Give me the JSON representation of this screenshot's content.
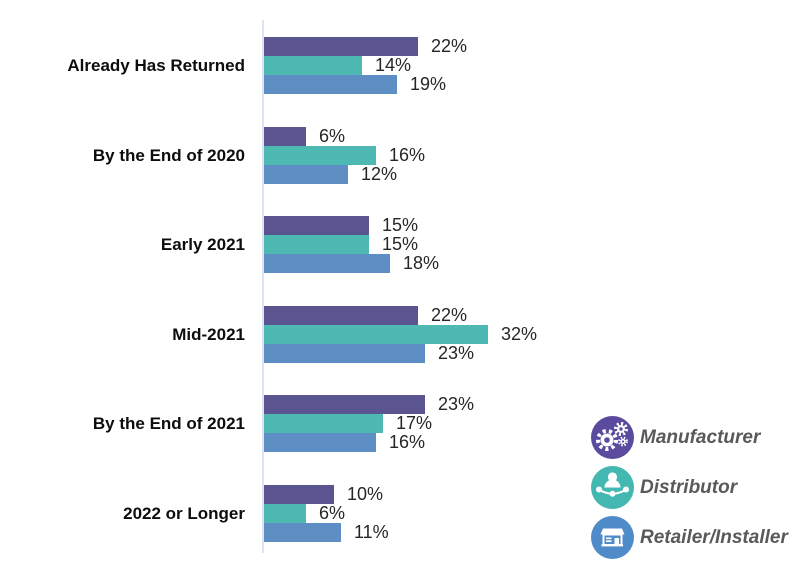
{
  "chart_data": {
    "type": "bar",
    "orientation": "horizontal",
    "title": "",
    "categories": [
      "Already Has Returned",
      "By the End of 2020",
      "Early 2021",
      "Mid-2021",
      "By the End of 2021",
      "2022 or Longer"
    ],
    "series": [
      {
        "name": "Manufacturer",
        "color": "#5a5491",
        "values": [
          22,
          6,
          15,
          22,
          23,
          10
        ]
      },
      {
        "name": "Distributor",
        "color": "#4eb8b2",
        "values": [
          14,
          16,
          15,
          32,
          17,
          6
        ]
      },
      {
        "name": "Retailer/Installer",
        "color": "#5e8fc4",
        "values": [
          19,
          12,
          18,
          23,
          16,
          11
        ]
      }
    ],
    "value_suffix": "%",
    "xlim": [
      0,
      35
    ],
    "grid": false,
    "axis_line_color": "#dce6f2",
    "legend_position": "right-bottom"
  },
  "legend": {
    "text_color": "#595959",
    "entries": [
      {
        "label": "Manufacturer",
        "icon": "gears-icon",
        "circle_color": "#5a4b9e"
      },
      {
        "label": "Distributor",
        "icon": "network-person-icon",
        "circle_color": "#43b8b0"
      },
      {
        "label": "Retailer/Installer",
        "icon": "storefront-icon",
        "circle_color": "#4e8bc8"
      }
    ]
  },
  "style": {
    "background": "#ffffff",
    "category_label_color": "#0d0d0d",
    "value_label_color": "#262626"
  }
}
